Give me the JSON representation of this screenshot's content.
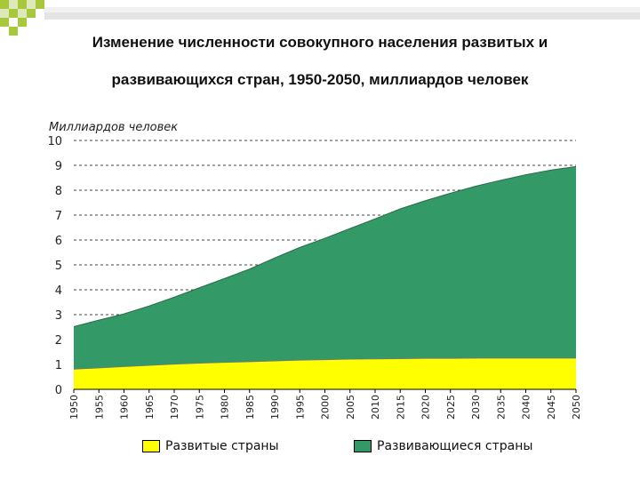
{
  "title_line1": "Изменение численности совокупного населения развитых и",
  "title_line2": "развивающихся стран, 1950-2050, миллиардов человек",
  "colors": {
    "developed": "#ffff00",
    "developing": "#339966",
    "deco_green": "#a8c83c"
  },
  "chart_data": {
    "type": "area",
    "stacked": true,
    "ylabel": "Миллиардов человек",
    "ylim": [
      0,
      10
    ],
    "yticks": [
      "0",
      "1",
      "2",
      "3",
      "4",
      "5",
      "6",
      "7",
      "8",
      "9",
      "10"
    ],
    "x": [
      1950,
      1955,
      1960,
      1965,
      1970,
      1975,
      1980,
      1985,
      1990,
      1995,
      2000,
      2005,
      2010,
      2015,
      2020,
      2025,
      2030,
      2035,
      2040,
      2045,
      2050
    ],
    "grid": true,
    "legend_position": "bottom",
    "series": [
      {
        "name": "Развитые страны",
        "values": [
          0.81,
          0.86,
          0.91,
          0.96,
          1.01,
          1.05,
          1.08,
          1.11,
          1.14,
          1.17,
          1.19,
          1.21,
          1.22,
          1.23,
          1.24,
          1.24,
          1.25,
          1.25,
          1.25,
          1.25,
          1.25
        ]
      },
      {
        "name": "Развивающиеся страны",
        "values": [
          1.71,
          1.92,
          2.12,
          2.39,
          2.69,
          3.03,
          3.37,
          3.72,
          4.14,
          4.53,
          4.88,
          5.25,
          5.63,
          6.02,
          6.34,
          6.64,
          6.91,
          7.15,
          7.37,
          7.56,
          7.7
        ]
      }
    ]
  }
}
